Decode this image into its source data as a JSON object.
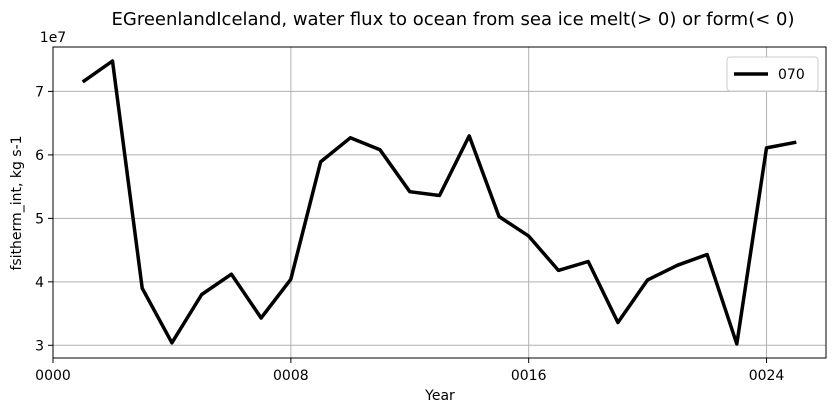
{
  "chart_data": {
    "type": "line",
    "title": "EGreenlandIceland, water flux to ocean from sea ice melt(> 0) or form(< 0)",
    "xlabel": "Year",
    "ylabel": "fsitherm_int, kg s-1",
    "y_offset_label": "1e7",
    "y_scale": 10000000,
    "xlim": [
      0,
      26
    ],
    "ylim": [
      2.8,
      7.7
    ],
    "x_ticks": [
      0,
      8,
      16,
      24
    ],
    "x_tick_labels": [
      "0000",
      "0008",
      "0016",
      "0024"
    ],
    "y_ticks": [
      3,
      4,
      5,
      6,
      7
    ],
    "y_tick_labels": [
      "3",
      "4",
      "5",
      "6",
      "7"
    ],
    "grid": true,
    "legend_position": "top-right",
    "series": [
      {
        "name": "070",
        "color": "#000000",
        "x": [
          1,
          2,
          3,
          4,
          5,
          6,
          7,
          8,
          9,
          10,
          11,
          12,
          13,
          14,
          15,
          16,
          17,
          18,
          19,
          20,
          21,
          22,
          23,
          24,
          25
        ],
        "values": [
          7.15,
          7.48,
          3.9,
          3.04,
          3.8,
          4.12,
          3.43,
          4.04,
          5.89,
          6.27,
          6.08,
          5.42,
          5.36,
          6.3,
          5.03,
          4.72,
          4.18,
          4.32,
          3.36,
          4.03,
          4.26,
          4.43,
          3.02,
          6.11,
          6.2
        ]
      }
    ]
  }
}
